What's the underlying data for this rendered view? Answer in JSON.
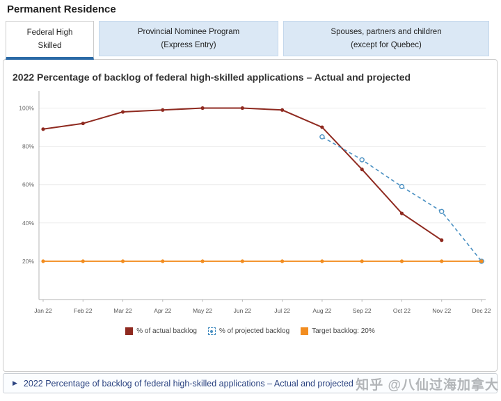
{
  "page": {
    "heading": "Permanent Residence"
  },
  "tabs": [
    {
      "label": "Federal High\nSkilled",
      "active": true
    },
    {
      "label": "Provincial Nominee Program\n(Express Entry)",
      "active": false
    },
    {
      "label": "Spouses, partners and children\n(except for Quebec)",
      "active": false
    }
  ],
  "chart_title": "2022 Percentage of backlog of federal high-skilled applications – Actual and projected",
  "chart_data": {
    "type": "line",
    "title": "2022 Percentage of backlog of federal high-skilled applications – Actual and projected",
    "categories": [
      "Jan 22",
      "Feb 22",
      "Mar 22",
      "Apr 22",
      "May 22",
      "Jun 22",
      "Jul 22",
      "Aug 22",
      "Sep 22",
      "Oct 22",
      "Nov 22",
      "Dec 22"
    ],
    "series": [
      {
        "name": "% of actual backlog",
        "color": "#8f2a20",
        "style": "solid",
        "marker": "filled",
        "values": [
          89,
          92,
          98,
          99,
          100,
          100,
          99,
          90,
          68,
          45,
          31,
          null
        ]
      },
      {
        "name": "% of projected backlog",
        "color": "#4a90c2",
        "style": "dashed",
        "marker": "hollow",
        "values": [
          null,
          null,
          null,
          null,
          null,
          null,
          null,
          85,
          73,
          59,
          46,
          20
        ]
      },
      {
        "name": "Target backlog: 20%",
        "color": "#f28d20",
        "style": "solid",
        "marker": "filled",
        "values": [
          20,
          20,
          20,
          20,
          20,
          20,
          20,
          20,
          20,
          20,
          20,
          20
        ]
      }
    ],
    "xlabel": "",
    "ylabel": "",
    "ylim": [
      0,
      106
    ],
    "yticks": [
      20,
      40,
      60,
      80,
      100
    ],
    "grid": true,
    "legend_position": "bottom"
  },
  "expander": {
    "label": "2022 Percentage of backlog of federal high-skilled applications – Actual and projected"
  },
  "watermark": "知乎 @八仙过海加拿大"
}
